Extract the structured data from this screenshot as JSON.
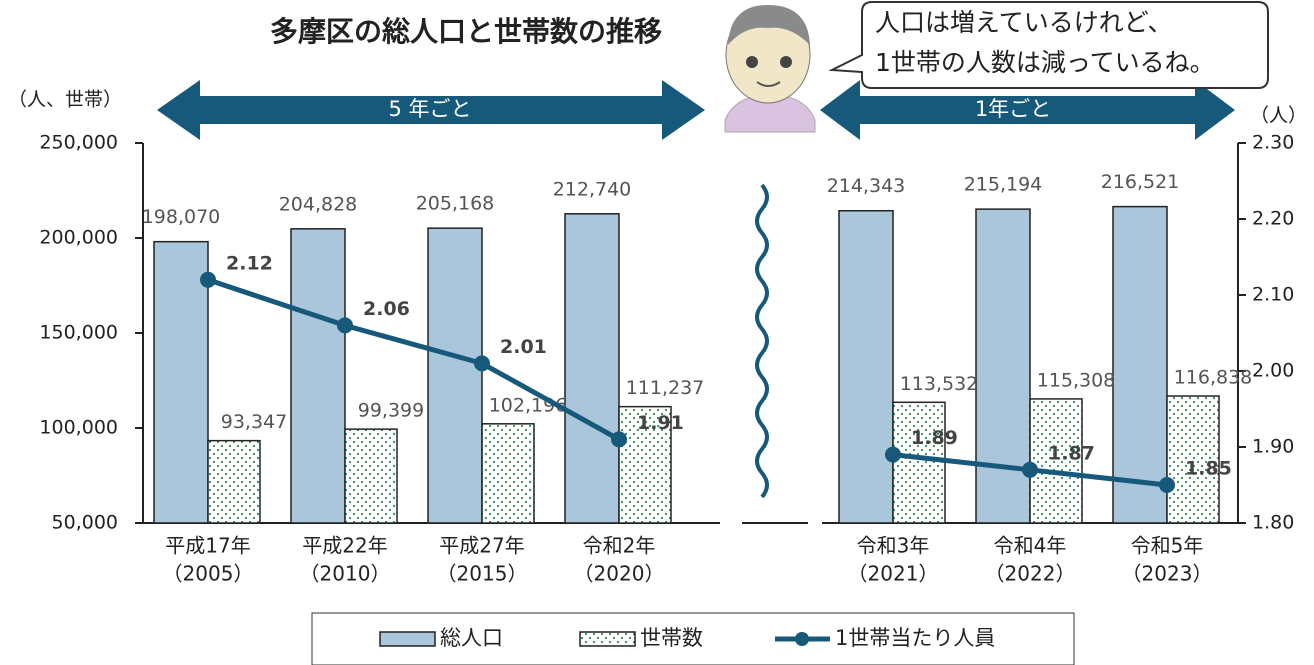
{
  "chart_data": {
    "type": "bar_line",
    "title": "多摩区の総人口と世帯数の推移",
    "y_label": "（人、世帯）",
    "y2_label": "（人）",
    "annotations": [
      "5 年ごと",
      "1年ごと"
    ],
    "speech": [
      "人口は増えているけれど、",
      "1世帯の人数は減っているね。"
    ],
    "categories": [
      [
        "平成17年",
        "（2005）"
      ],
      [
        "平成22年",
        "（2010）"
      ],
      [
        "平成27年",
        "（2015）"
      ],
      [
        "令和2年",
        "（2020）"
      ],
      [
        "令和3年",
        "（2021）"
      ],
      [
        "令和4年",
        "（2022）"
      ],
      [
        "令和5年",
        "（2023）"
      ]
    ],
    "series": [
      {
        "name": "総人口",
        "type": "bar",
        "color": "#a9c6db",
        "values": [
          198070,
          204828,
          205168,
          212740,
          214343,
          215194,
          216521
        ],
        "value_labels": [
          "198,070",
          "204,828",
          "205,168",
          "212,740",
          "214,343",
          "215,194",
          "216,521"
        ]
      },
      {
        "name": "世帯数",
        "type": "bar",
        "color": "#2e8b57",
        "values": [
          93347,
          99399,
          102196,
          111237,
          113532,
          115308,
          116838
        ],
        "value_labels": [
          "93,347",
          "99,399",
          "102,196",
          "111,237",
          "113,532",
          "115,308",
          "116,838"
        ]
      },
      {
        "name": "1世帯当たり人員",
        "type": "line",
        "axis": "y2",
        "color": "#17597a",
        "values": [
          2.12,
          2.06,
          2.01,
          1.91,
          1.89,
          1.87,
          1.85
        ]
      }
    ],
    "ylim": [
      50000,
      250000
    ],
    "yticks": [
      {
        "value": 50000,
        "label": "50,000"
      },
      {
        "value": 100000,
        "label": "100,000"
      },
      {
        "value": 150000,
        "label": "150,000"
      },
      {
        "value": 200000,
        "label": "200,000"
      },
      {
        "value": 250000,
        "label": "250,000"
      }
    ],
    "y2lim": [
      1.8,
      2.3
    ],
    "y2ticks": [
      {
        "value": 1.8,
        "label": "1.80"
      },
      {
        "value": 1.9,
        "label": "1.90"
      },
      {
        "value": 2.0,
        "label": "2.00"
      },
      {
        "value": 2.1,
        "label": "2.10"
      },
      {
        "value": 2.2,
        "label": "2.20"
      },
      {
        "value": 2.3,
        "label": "2.30"
      }
    ]
  }
}
